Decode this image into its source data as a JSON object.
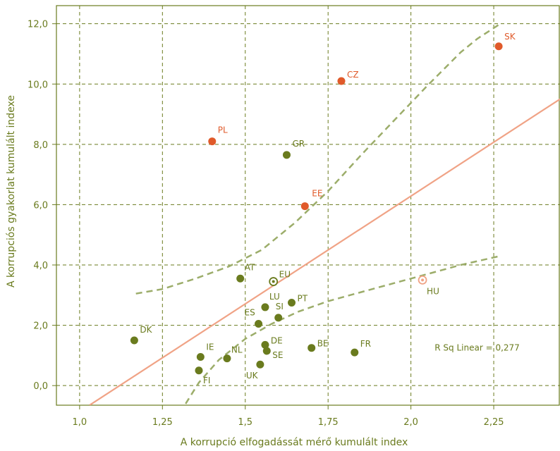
{
  "chart_data": {
    "type": "scatter",
    "title": "",
    "xlabel": "A korrupció elfogadássát mérő kumulált index",
    "ylabel": "A korrupciós gyakorlat kumulált indexe",
    "xlim": [
      0.93,
      2.45
    ],
    "ylim": [
      -0.65,
      12.6
    ],
    "xticks": [
      1.0,
      1.25,
      1.5,
      1.75,
      2.0,
      2.25
    ],
    "xtick_labels": [
      "1,0",
      "1,25",
      "1,5",
      "1,75",
      "2,0",
      "2,25"
    ],
    "yticks": [
      0,
      2,
      4,
      6,
      8,
      10,
      12
    ],
    "ytick_labels": [
      "0,0",
      "2,0",
      "4,0",
      "6,0",
      "8,0",
      "10,0",
      "12,0"
    ],
    "grid": true,
    "points": [
      {
        "label": "SK",
        "x": 2.265,
        "y": 11.25,
        "group": "highlight"
      },
      {
        "label": "CZ",
        "x": 1.79,
        "y": 10.1,
        "group": "highlight"
      },
      {
        "label": "PL",
        "x": 1.4,
        "y": 8.1,
        "group": "highlight"
      },
      {
        "label": "EE",
        "x": 1.68,
        "y": 5.95,
        "group": "highlight"
      },
      {
        "label": "GR",
        "x": 1.625,
        "y": 7.65,
        "group": "base"
      },
      {
        "label": "AT",
        "x": 1.485,
        "y": 3.55,
        "group": "base"
      },
      {
        "label": "EU",
        "x": 1.585,
        "y": 3.45,
        "group": "eu"
      },
      {
        "label": "HU",
        "x": 2.035,
        "y": 3.5,
        "group": "hu"
      },
      {
        "label": "LU",
        "x": 1.56,
        "y": 2.6,
        "group": "base"
      },
      {
        "label": "PT",
        "x": 1.64,
        "y": 2.75,
        "group": "base"
      },
      {
        "label": "SI",
        "x": 1.6,
        "y": 2.25,
        "group": "base"
      },
      {
        "label": "ES",
        "x": 1.54,
        "y": 2.05,
        "group": "base"
      },
      {
        "label": "DK",
        "x": 1.165,
        "y": 1.5,
        "group": "base"
      },
      {
        "label": "DE",
        "x": 1.56,
        "y": 1.35,
        "group": "base"
      },
      {
        "label": "BE",
        "x": 1.7,
        "y": 1.25,
        "group": "base"
      },
      {
        "label": "FR",
        "x": 1.83,
        "y": 1.1,
        "group": "base"
      },
      {
        "label": "SE",
        "x": 1.565,
        "y": 1.15,
        "group": "base"
      },
      {
        "label": "IE",
        "x": 1.365,
        "y": 0.95,
        "group": "base"
      },
      {
        "label": "NL",
        "x": 1.445,
        "y": 0.9,
        "group": "base"
      },
      {
        "label": "UK",
        "x": 1.545,
        "y": 0.7,
        "group": "base"
      },
      {
        "label": "FI",
        "x": 1.36,
        "y": 0.5,
        "group": "base"
      }
    ],
    "fit_line": {
      "x": [
        1.03,
        2.45
      ],
      "y": [
        -0.65,
        9.5
      ]
    },
    "ci_upper": {
      "x": [
        1.17,
        1.25,
        1.35,
        1.45,
        1.55,
        1.65,
        1.75,
        1.85,
        1.95,
        2.05,
        2.15,
        2.2,
        2.27
      ],
      "y": [
        3.05,
        3.2,
        3.55,
        3.95,
        4.5,
        5.4,
        6.45,
        7.65,
        8.8,
        9.95,
        11.05,
        11.5,
        12.0
      ]
    },
    "ci_lower": {
      "x": [
        1.32,
        1.36,
        1.42,
        1.5,
        1.58,
        1.66,
        1.75,
        1.85,
        1.95,
        2.05,
        2.15,
        2.27
      ],
      "y": [
        -0.6,
        0.1,
        0.85,
        1.55,
        2.05,
        2.45,
        2.8,
        3.1,
        3.4,
        3.7,
        4.0,
        4.3
      ]
    },
    "annotation": {
      "text": "R Sq Linear = 0,277",
      "x": 2.2,
      "y": 1.25
    },
    "colors": {
      "base": "#6a7b1e",
      "highlight": "#e05a2a",
      "fit": "#f0a386",
      "ci": "#9cad6a",
      "axis": "#6a7b1e",
      "grid": "#6a7b1e"
    }
  }
}
